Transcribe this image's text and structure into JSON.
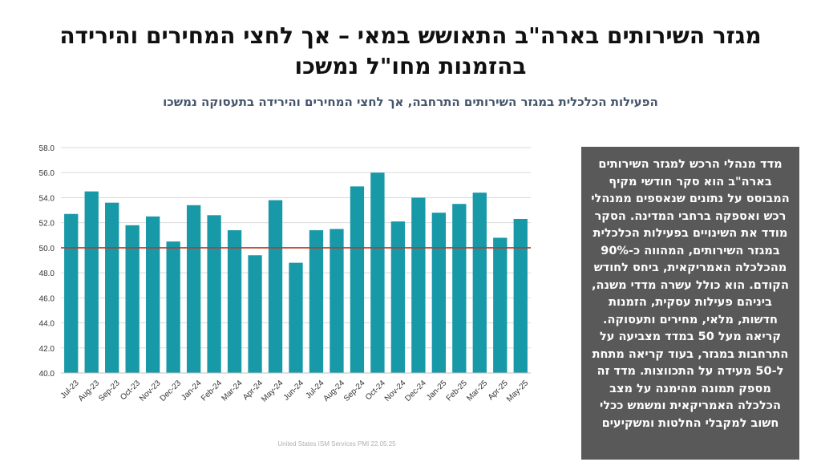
{
  "title": "מגזר השירותים בארה\"ב התאושש במאי – אך לחצי המחירים והירידה בהזמנות מחו\"ל נמשכו",
  "subtitle": "הפעילות הכלכלית במגזר השירותים התרחבה, אך לחצי המחירים והירידה בתעסוקה נמשכו",
  "source": "United States ISM Services PMI 22.05.25",
  "info_box": "מדד מנהלי הרכש למגזר השירותים בארה\"ב הוא סקר חודשי מקיף המבוסס על נתונים שנאספים ממנהלי רכש ואספקה ברחבי המדינה. הסקר מודד את השינויים בפעילות הכלכלית במגזר השירותים, המהווה כ-90% מהכלכלה האמריקאית, ביחס לחודש הקודם. הוא כולל עשרה מדדי משנה, ביניהם פעילות עסקית, הזמנות חדשות, מלאי, מחירים ותעסוקה. קריאה מעל 50 במדד מצביעה על התרחבות במגזר, בעוד קריאה מתחת ל-50 מעידה על התכווצות. מדד זה מספק תמונה מהימנה על מצב הכלכלה האמריקאית ומשמש ככלי חשוב למקבלי החלטות ומשקיעים",
  "colors": {
    "bar": "#1899a8",
    "reference_line": "#c0392b",
    "info_box_bg": "#595959",
    "subtitle": "#44546a"
  },
  "chart_data": {
    "type": "bar",
    "categories": [
      "Jul-23",
      "Aug-23",
      "Sep-23",
      "Oct-23",
      "Nov-23",
      "Dec-23",
      "Jan-24",
      "Feb-24",
      "Mar-24",
      "Apr-24",
      "May-24",
      "Jun-24",
      "Jul-24",
      "Aug-24",
      "Sep-24",
      "Oct-24",
      "Nov-24",
      "Dec-24",
      "Jan-25",
      "Feb-25",
      "Mar-25",
      "Apr-25",
      "May-25"
    ],
    "values": [
      52.7,
      54.5,
      53.6,
      51.8,
      52.5,
      50.5,
      53.4,
      52.6,
      51.4,
      49.4,
      53.8,
      48.8,
      51.4,
      51.5,
      54.9,
      56.0,
      52.1,
      54.0,
      52.8,
      53.5,
      54.4,
      50.8,
      52.3
    ],
    "ylim": [
      40,
      58
    ],
    "yticks": [
      "40.0",
      "42.0",
      "44.0",
      "46.0",
      "48.0",
      "50.0",
      "52.0",
      "54.0",
      "56.0",
      "58.0"
    ],
    "reference_line": 50.0,
    "grid": true,
    "legend": "none"
  }
}
